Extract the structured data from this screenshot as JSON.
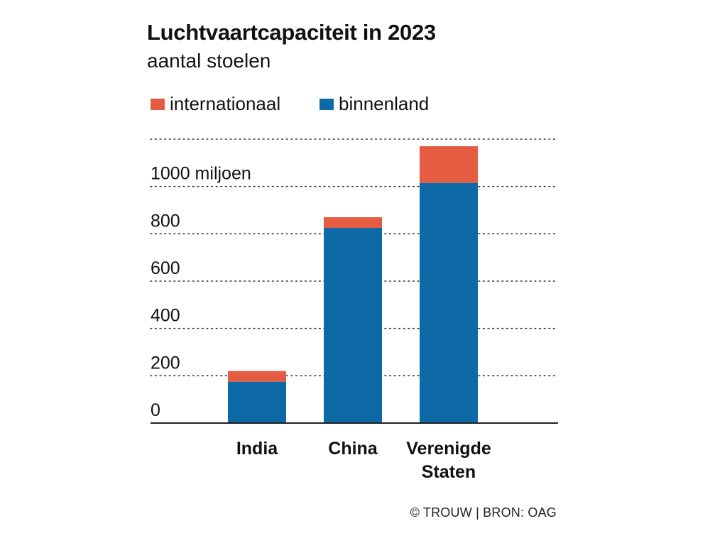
{
  "title": "Luchtvaartcapaciteit in 2023",
  "subtitle": "aantal stoelen",
  "footer": "© TROUW | BRON: OAG",
  "chart_data": {
    "type": "bar",
    "stacked": true,
    "categories": [
      [
        "India"
      ],
      [
        "China"
      ],
      [
        "Verenigde",
        "Staten"
      ]
    ],
    "series": [
      {
        "name": "binnenland",
        "color": "#0e6aa6",
        "values": [
          175,
          825,
          1015
        ]
      },
      {
        "name": "internationaal",
        "color": "#e45d42",
        "values": [
          45,
          45,
          155
        ]
      }
    ],
    "legend_order": [
      "internationaal",
      "binnenland"
    ],
    "legend_position": "top-left",
    "ylim": [
      0,
      1200
    ],
    "yticks": [
      0,
      200,
      400,
      600,
      800,
      1000
    ],
    "ytick_labels": [
      "0",
      "200",
      "400",
      "600",
      "800",
      "1000 miljoen"
    ],
    "grid": "dotted horizontal",
    "xlabel": "",
    "ylabel": ""
  }
}
